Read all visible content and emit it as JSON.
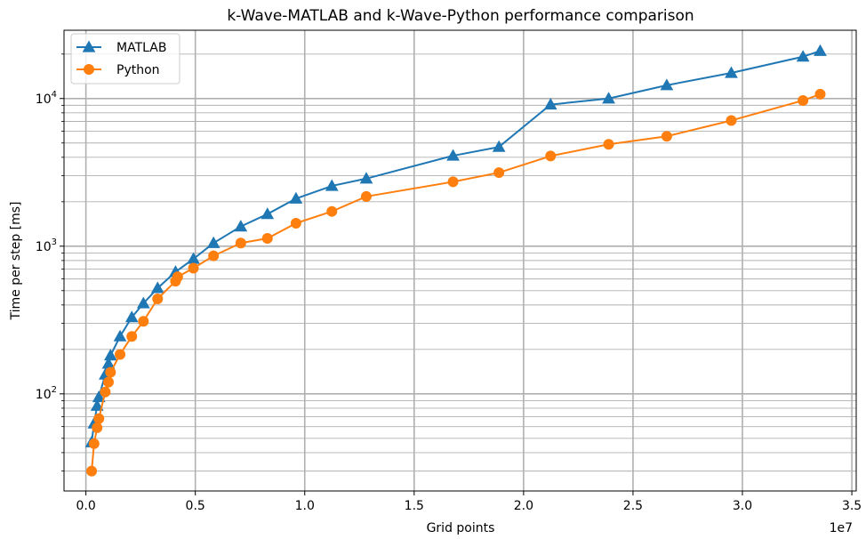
{
  "chart_data": {
    "type": "line",
    "title": "k-Wave-MATLAB and k-Wave-Python performance comparison",
    "xlabel": "Grid points",
    "ylabel": "Time per step [ms]",
    "x_offset_label": "1e7",
    "xscale": "linear",
    "yscale": "log",
    "xlim": [
      -1000000.0,
      35200000.0
    ],
    "ylim": [
      22,
      29000
    ],
    "grid": "both, major and minor",
    "legend_position": "top-left",
    "x_ticks": [
      0,
      5000000,
      10000000,
      15000000,
      20000000,
      25000000,
      30000000,
      35000000
    ],
    "x_tick_labels": [
      "0.0",
      "0.5",
      "1.0",
      "1.5",
      "2.0",
      "2.5",
      "3.0",
      "3.5"
    ],
    "y_ticks": [
      100,
      1000,
      10000
    ],
    "y_tick_base": "10",
    "y_tick_exponents": [
      "2",
      "3",
      "4"
    ],
    "series": [
      {
        "name": "MATLAB",
        "color": "#1f77b4",
        "marker": "triangle-up",
        "x": [
          262144,
          373248,
          512000,
          592704,
          884736,
          1030301,
          1124864,
          1560896,
          2097152,
          2628072,
          3276800,
          4096000,
          4913000,
          5832000,
          7077888,
          8294400,
          9600000,
          11239424,
          12812904,
          16777216,
          18874368,
          21233664,
          23887872,
          26542080,
          29491200,
          32768000,
          33554432
        ],
        "y": [
          47,
          63,
          83,
          95,
          135,
          160,
          182,
          245,
          330,
          410,
          520,
          670,
          820,
          1050,
          1360,
          1650,
          2100,
          2560,
          2870,
          4100,
          4700,
          9100,
          10000,
          12300,
          14900,
          19200,
          21000
        ]
      },
      {
        "name": "Python",
        "color": "#ff7f0e",
        "marker": "circle",
        "x": [
          262144,
          373248,
          512000,
          592704,
          884736,
          1030301,
          1124864,
          1560896,
          2097152,
          2628072,
          3276800,
          4096000,
          4194304,
          4913000,
          5832000,
          7077888,
          8294400,
          9600000,
          11239424,
          12812904,
          16777216,
          18874368,
          21233664,
          23887872,
          26542080,
          29491200,
          32768000,
          33554432
        ],
        "y": [
          30,
          46,
          59,
          68,
          103,
          120,
          140,
          185,
          245,
          310,
          440,
          580,
          620,
          710,
          860,
          1050,
          1130,
          1430,
          1720,
          2170,
          2730,
          3150,
          4080,
          4900,
          5550,
          7100,
          9700,
          10700
        ]
      }
    ]
  }
}
